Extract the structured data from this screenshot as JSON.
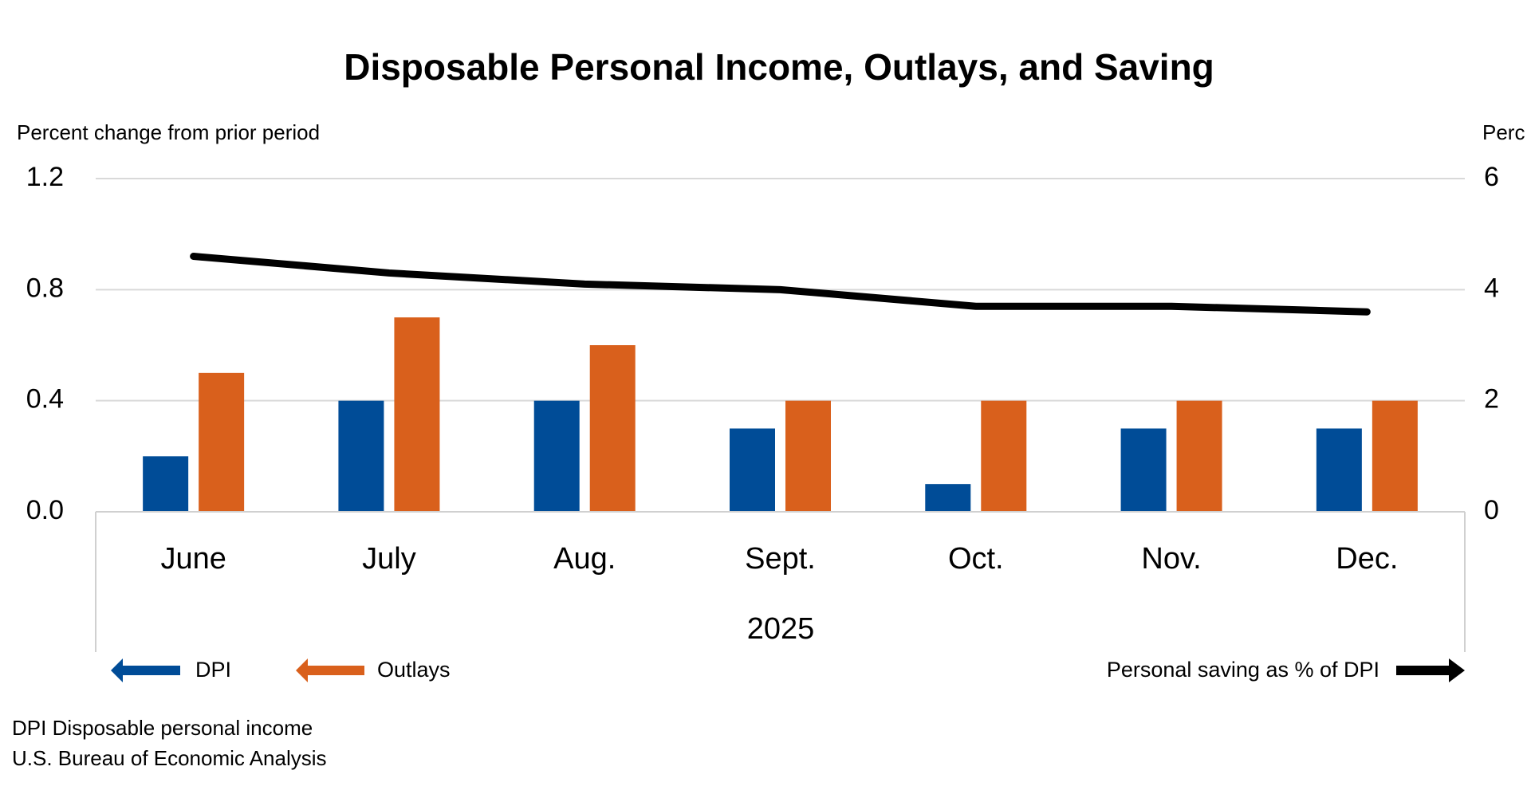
{
  "chart_data": {
    "type": "bar",
    "title": "Disposable Personal Income, Outlays, and Saving",
    "y_label": "Percent change from prior period",
    "y2_label": "Perc",
    "x_label": "2025",
    "categories": [
      "June",
      "July",
      "Aug.",
      "Sept.",
      "Oct.",
      "Nov.",
      "Dec."
    ],
    "series": [
      {
        "name": "DPI",
        "color": "#004c97",
        "values": [
          0.2,
          0.4,
          0.4,
          0.3,
          0.1,
          0.3,
          0.3
        ]
      },
      {
        "name": "Outlays",
        "color": "#d9601c",
        "values": [
          0.5,
          0.7,
          0.6,
          0.4,
          0.4,
          0.4,
          0.4
        ]
      },
      {
        "name": "Personal saving as % of DPI",
        "color": "#000000",
        "type": "line",
        "axis": "y2",
        "values": [
          4.6,
          4.3,
          4.1,
          4.0,
          3.7,
          3.7,
          3.6
        ]
      }
    ],
    "ylim": [
      0,
      1.2
    ],
    "yticks": [
      {
        "value": 0,
        "label": "0.0"
      },
      0.4,
      0.8,
      1.2
    ],
    "y2lim": [
      0,
      6
    ],
    "y2ticks": [
      0,
      2,
      4,
      6
    ],
    "grid": true,
    "notes": [
      "DPI Disposable personal income",
      "U.S. Bureau of Economic Analysis"
    ]
  }
}
